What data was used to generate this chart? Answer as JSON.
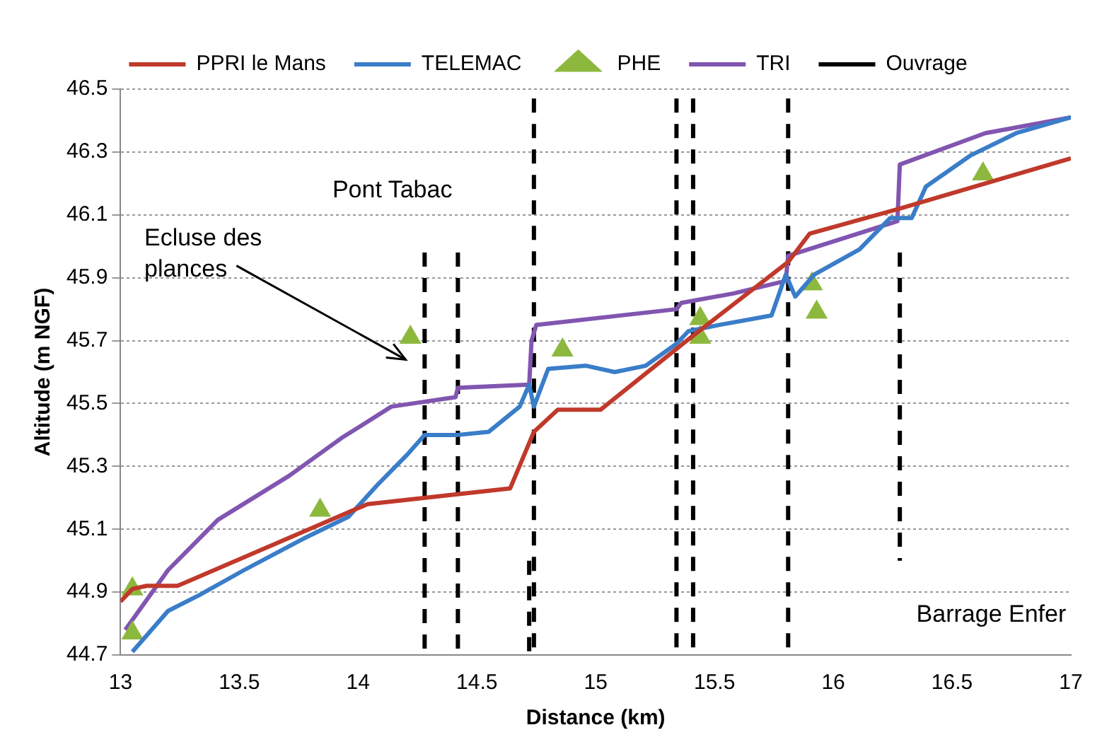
{
  "chart_data": {
    "type": "line",
    "xlabel": "Distance (km)",
    "ylabel": "Altitude (m NGF)",
    "xlim": [
      13,
      17
    ],
    "xticks": [
      13,
      13.5,
      14,
      14.5,
      15,
      15.5,
      16,
      16.5,
      17
    ],
    "ylim": [
      44.7,
      46.5
    ],
    "yticks": [
      44.7,
      44.9,
      45.1,
      45.3,
      45.5,
      45.7,
      45.9,
      46.1,
      46.3,
      46.5
    ],
    "grid": "y",
    "legend": "top",
    "annotations": [
      "Pont Tabac",
      "Ecluse des plances",
      "Barrage Enfer"
    ],
    "series": [
      {
        "name": "PPRI le Mans",
        "type": "line",
        "color": "#c0392b",
        "marker": "none",
        "line_style": "solid",
        "x": [
          13,
          13.05,
          13.11,
          13.24,
          14.04,
          14.64,
          14.74,
          14.84,
          15.02,
          15.4,
          15.81,
          15.9,
          16.28,
          17
        ],
        "values": [
          44.87,
          44.91,
          44.92,
          44.92,
          45.18,
          45.23,
          45.41,
          45.48,
          45.48,
          45.71,
          45.95,
          46.04,
          46.12,
          46.28
        ]
      },
      {
        "name": "TELEMAC",
        "type": "line",
        "color": "#3a7dc9",
        "marker": "none",
        "line_style": "solid",
        "x": [
          13.05,
          13.2,
          13.33,
          13.52,
          13.77,
          13.96,
          14.08,
          14.21,
          14.28,
          14.42,
          14.55,
          14.68,
          14.72,
          14.74,
          14.8,
          14.96,
          15.08,
          15.21,
          15.34,
          15.39,
          15.52,
          15.74,
          15.8,
          15.84,
          15.92,
          16.11,
          16.24,
          16.33,
          16.39,
          16.58,
          16.77,
          17
        ],
        "values": [
          44.71,
          44.84,
          44.89,
          44.97,
          45.07,
          45.14,
          45.24,
          45.34,
          45.4,
          45.4,
          45.41,
          45.49,
          45.56,
          45.49,
          45.61,
          45.62,
          45.6,
          45.62,
          45.69,
          45.73,
          45.75,
          45.78,
          45.91,
          45.84,
          45.91,
          45.99,
          46.09,
          46.09,
          46.19,
          46.29,
          46.36,
          46.41
        ]
      },
      {
        "name": "PHE",
        "type": "scatter",
        "color": "#8db83e",
        "marker": "triangle",
        "x": [
          13.05,
          13.05,
          13.84,
          14.22,
          14.86,
          15.44,
          15.44,
          15.91,
          15.93,
          16.63
        ],
        "values": [
          44.77,
          44.91,
          45.16,
          45.71,
          45.67,
          45.77,
          45.71,
          45.88,
          45.79,
          46.23
        ]
      },
      {
        "name": "TRI",
        "type": "line",
        "color": "#8155b0",
        "marker": "none",
        "line_style": "solid",
        "x": [
          13.02,
          13.2,
          13.41,
          13.71,
          13.93,
          14.14,
          14.41,
          14.42,
          14.72,
          14.73,
          14.75,
          15.34,
          15.36,
          15.58,
          15.8,
          15.81,
          16.27,
          16.28,
          16.64,
          17
        ],
        "values": [
          44.78,
          44.97,
          45.13,
          45.27,
          45.39,
          45.49,
          45.52,
          45.55,
          45.56,
          45.7,
          45.75,
          45.8,
          45.82,
          45.85,
          45.89,
          45.97,
          46.08,
          46.26,
          46.36,
          46.41
        ]
      },
      {
        "name": "Ouvrage",
        "type": "line",
        "color": "#000000",
        "marker": "none",
        "line_style": "dashed",
        "x": [
          14.28,
          14.28,
          14.42,
          14.42,
          14.72,
          14.72,
          14.74,
          14.74,
          15.34,
          15.34,
          15.41,
          15.41,
          15.81,
          15.81,
          16.28,
          16.28
        ],
        "values": [
          45.98,
          44.7,
          45.98,
          44.7,
          45.0,
          44.7,
          46.47,
          44.7,
          46.47,
          44.7,
          46.47,
          44.7,
          46.47,
          44.7,
          45.98,
          45.0
        ]
      }
    ]
  }
}
